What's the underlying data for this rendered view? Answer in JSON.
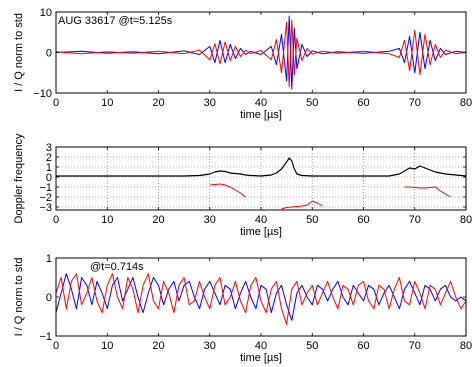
{
  "chart_data": [
    {
      "type": "line",
      "annotation": "AUG 33617 @t=5.125s",
      "xlabel": "time [µs]",
      "ylabel": "I / Q norm to std",
      "xlim": [
        0,
        80
      ],
      "ylim": [
        -10,
        10
      ],
      "xticks": [
        "0",
        "10",
        "20",
        "30",
        "40",
        "50",
        "60",
        "70",
        "80"
      ],
      "yticks": [
        "10",
        "0",
        "−10"
      ],
      "ytick_values": [
        10,
        0,
        -10
      ],
      "grid": false,
      "colors": [
        "#0000ff",
        "#ff0000"
      ],
      "series": [
        {
          "x": [
            0,
            5,
            10,
            15,
            20,
            25,
            28,
            30,
            31,
            32,
            33,
            34,
            35,
            36,
            37,
            38,
            40,
            42,
            43,
            44,
            45,
            45.5,
            46,
            46.5,
            47,
            48,
            49,
            50,
            52,
            55,
            60,
            65,
            67,
            68,
            69,
            70,
            71,
            72,
            73,
            74,
            75,
            76,
            78,
            80
          ],
          "values": [
            0,
            0.3,
            -0.2,
            0.2,
            -0.3,
            0.4,
            -0.5,
            1.5,
            -2.5,
            3.0,
            -2.5,
            2.0,
            -1.5,
            1.0,
            -0.5,
            0.3,
            -0.5,
            1.5,
            -3.0,
            4.5,
            -7.0,
            9.0,
            -9.0,
            6.0,
            -4.0,
            2.0,
            -1.0,
            0.4,
            -0.3,
            0.2,
            -0.2,
            0.3,
            1.0,
            -2.5,
            4.0,
            -5.0,
            5.0,
            -4.0,
            3.0,
            -2.0,
            1.0,
            -0.5,
            0.3,
            0
          ]
        },
        {
          "x": [
            0,
            5,
            10,
            15,
            20,
            25,
            28,
            30,
            31,
            32,
            33,
            34,
            35,
            36,
            37,
            38,
            40,
            42,
            43,
            44,
            45,
            45.5,
            46,
            46.5,
            47,
            48,
            49,
            50,
            52,
            55,
            60,
            65,
            67,
            68,
            69,
            70,
            71,
            72,
            73,
            74,
            75,
            76,
            78,
            80
          ],
          "values": [
            0.2,
            -0.3,
            0.2,
            -0.2,
            0.3,
            -0.3,
            0.6,
            -1.8,
            2.2,
            -2.8,
            2.6,
            -2.0,
            1.5,
            -1.0,
            0.6,
            -0.3,
            0.5,
            -1.8,
            3.2,
            -5.0,
            7.5,
            -8.5,
            8.0,
            -5.5,
            3.5,
            -2.0,
            1.0,
            -0.4,
            0.3,
            -0.2,
            0.3,
            -0.3,
            -1.2,
            3.0,
            -4.5,
            5.5,
            -5.5,
            4.5,
            -3.0,
            2.0,
            -1.2,
            0.6,
            -0.3,
            0.1
          ]
        }
      ]
    },
    {
      "type": "line",
      "xlabel": "time [µs]",
      "ylabel": "Doppler frequency",
      "xlim": [
        0,
        80
      ],
      "ylim": [
        -3.3,
        3
      ],
      "xticks": [
        "0",
        "10",
        "20",
        "30",
        "40",
        "50",
        "60",
        "70",
        "80"
      ],
      "yticks": [
        "3",
        "2",
        "1",
        "0",
        "−1",
        "−2",
        "−3"
      ],
      "ytick_values": [
        3,
        2,
        1,
        0,
        -1,
        -2,
        -3
      ],
      "grid": true,
      "colors": [
        "#000000",
        "#ff0000"
      ],
      "series": [
        {
          "x": [
            0,
            10,
            20,
            25,
            28,
            30,
            31,
            32,
            33,
            34,
            35,
            36,
            37,
            38,
            40,
            42,
            43,
            44,
            45,
            45.5,
            46,
            46.5,
            47,
            48,
            50,
            55,
            60,
            65,
            67,
            68,
            69,
            70,
            71,
            72,
            73,
            74,
            75,
            76,
            78,
            80
          ],
          "values": [
            0.1,
            0.1,
            0.1,
            0.1,
            0.15,
            0.3,
            0.5,
            0.6,
            0.55,
            0.4,
            0.35,
            0.3,
            0.2,
            0.15,
            0.1,
            0.2,
            0.4,
            0.8,
            1.5,
            1.9,
            1.6,
            0.8,
            0.3,
            0.15,
            0.1,
            0.1,
            0.1,
            0.1,
            0.3,
            0.6,
            0.9,
            0.8,
            1.1,
            0.9,
            0.7,
            0.5,
            0.4,
            0.3,
            0.2,
            0.1
          ]
        },
        {
          "x": [
            30,
            31,
            32,
            33,
            34,
            35,
            36,
            37
          ],
          "values": [
            -0.8,
            -0.75,
            -0.7,
            -0.8,
            -1.0,
            -1.3,
            -1.6,
            -2.0
          ]
        },
        {
          "x": [
            44,
            45,
            46,
            47,
            48,
            49,
            50,
            51,
            52
          ],
          "values": [
            -3.2,
            -3.05,
            -3.0,
            -2.95,
            -2.9,
            -2.8,
            -2.4,
            -2.6,
            -2.9
          ]
        },
        {
          "x": [
            68,
            69,
            70,
            71,
            72,
            73,
            74,
            75,
            76,
            77
          ],
          "values": [
            -1.0,
            -1.0,
            -1.05,
            -1.1,
            -1.1,
            -1.05,
            -1.0,
            -1.4,
            -1.7,
            -2.0
          ]
        }
      ]
    },
    {
      "type": "line",
      "annotation": "@t=0.714s",
      "xlabel": "time [µs]",
      "ylabel": "I / Q norm to std",
      "xlim": [
        0,
        80
      ],
      "ylim": [
        -1,
        1
      ],
      "xticks": [
        "0",
        "10",
        "20",
        "30",
        "40",
        "50",
        "60",
        "70",
        "80"
      ],
      "yticks": [
        "1",
        "0",
        "−1"
      ],
      "ytick_values": [
        1,
        0,
        -1
      ],
      "grid": false,
      "colors": [
        "#0000ff",
        "#ff0000"
      ],
      "series": [
        {
          "x": [
            0,
            1,
            2,
            3,
            4,
            5,
            6,
            7,
            8,
            9,
            10,
            11,
            12,
            13,
            14,
            15,
            16,
            17,
            18,
            19,
            20,
            21,
            22,
            23,
            24,
            25,
            26,
            27,
            28,
            29,
            30,
            31,
            32,
            33,
            34,
            35,
            36,
            37,
            38,
            39,
            40,
            41,
            42,
            43,
            44,
            45,
            46,
            47,
            48,
            49,
            50,
            51,
            52,
            53,
            54,
            55,
            56,
            57,
            58,
            59,
            60,
            61,
            62,
            63,
            64,
            65,
            66,
            67,
            68,
            69,
            70,
            71,
            72,
            73,
            74,
            75,
            76,
            77,
            78,
            79,
            80
          ],
          "values": [
            -0.4,
            0.1,
            0.6,
            0.2,
            -0.3,
            0.5,
            0.3,
            -0.2,
            0.4,
            0.1,
            -0.3,
            0.3,
            0.5,
            -0.1,
            0.2,
            0.5,
            0.0,
            -0.4,
            0.1,
            0.5,
            0.3,
            -0.2,
            0.2,
            0.4,
            -0.1,
            0.3,
            0.4,
            0.0,
            -0.3,
            0.2,
            0.4,
            0.1,
            -0.2,
            0.3,
            0.2,
            -0.3,
            0.1,
            0.4,
            0.0,
            -0.3,
            0.3,
            0.2,
            -0.4,
            0.1,
            0.3,
            -0.2,
            -0.6,
            0.1,
            0.3,
            0.0,
            -0.2,
            0.3,
            0.2,
            -0.1,
            0.2,
            0.4,
            0.0,
            -0.2,
            0.3,
            0.1,
            -0.1,
            0.3,
            0.2,
            -0.2,
            0.1,
            0.3,
            0.0,
            -0.3,
            0.2,
            0.4,
            0.1,
            -0.2,
            0.3,
            0.2,
            -0.1,
            0.2,
            0.3,
            0.0,
            -0.1,
            0.0,
            -0.1
          ]
        },
        {
          "x": [
            0,
            1,
            2,
            3,
            4,
            5,
            6,
            7,
            8,
            9,
            10,
            11,
            12,
            13,
            14,
            15,
            16,
            17,
            18,
            19,
            20,
            21,
            22,
            23,
            24,
            25,
            26,
            27,
            28,
            29,
            30,
            31,
            32,
            33,
            34,
            35,
            36,
            37,
            38,
            39,
            40,
            41,
            42,
            43,
            44,
            45,
            46,
            47,
            48,
            49,
            50,
            51,
            52,
            53,
            54,
            55,
            56,
            57,
            58,
            59,
            60,
            61,
            62,
            63,
            64,
            65,
            66,
            67,
            68,
            69,
            70,
            71,
            72,
            73,
            74,
            75,
            76,
            77,
            78,
            79,
            80
          ],
          "values": [
            0.1,
            0.5,
            -0.3,
            0.4,
            0.6,
            -0.2,
            0.1,
            0.5,
            -0.1,
            -0.4,
            0.3,
            0.6,
            0.0,
            -0.3,
            0.5,
            0.2,
            -0.4,
            0.3,
            0.6,
            -0.1,
            -0.3,
            0.4,
            0.1,
            -0.4,
            0.3,
            0.5,
            -0.2,
            -0.1,
            0.4,
            0.0,
            -0.3,
            0.3,
            0.5,
            -0.2,
            0.0,
            0.4,
            -0.1,
            -0.4,
            0.3,
            0.5,
            -0.1,
            -0.4,
            0.2,
            0.4,
            -0.3,
            -0.7,
            0.2,
            0.4,
            -0.2,
            0.1,
            0.3,
            -0.2,
            0.1,
            0.4,
            0.0,
            -0.3,
            0.3,
            0.2,
            -0.2,
            0.3,
            0.4,
            -0.1,
            -0.3,
            0.3,
            0.2,
            -0.3,
            0.2,
            0.5,
            -0.1,
            -0.2,
            0.4,
            0.1,
            -0.3,
            0.3,
            0.2,
            -0.2,
            0.1,
            0.4,
            0.0,
            -0.3,
            -0.1
          ]
        }
      ]
    }
  ]
}
